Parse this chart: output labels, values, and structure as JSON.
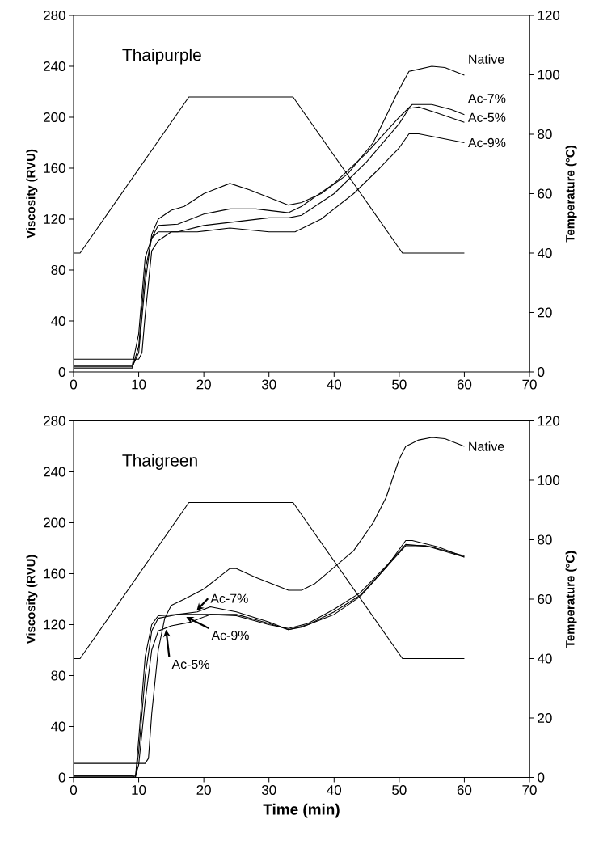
{
  "chart_data": [
    {
      "type": "line",
      "title": "Thaipurple",
      "ylabel": "Viscosity (RVU)",
      "y2label": "Temperature (°C)",
      "xlim": [
        0,
        70
      ],
      "xticks": [
        0,
        10,
        20,
        30,
        40,
        50,
        60,
        70
      ],
      "ylim": [
        0,
        280
      ],
      "yticks": [
        0,
        40,
        80,
        120,
        160,
        200,
        240,
        280
      ],
      "y2lim": [
        0,
        120
      ],
      "y2ticks": [
        0,
        20,
        40,
        60,
        80,
        100,
        120
      ],
      "series": [
        {
          "name": "Native",
          "color": "#000000",
          "x": [
            0,
            9,
            10,
            11,
            12,
            13,
            15,
            17,
            20,
            24,
            27,
            33,
            35,
            38,
            42,
            46,
            50,
            51.5,
            55,
            57,
            60
          ],
          "values": [
            4,
            4,
            15,
            70,
            108,
            120,
            127,
            130,
            140,
            148,
            143,
            131,
            133,
            140,
            155,
            180,
            222,
            236,
            240,
            239,
            233
          ]
        },
        {
          "name": "Ac-7%",
          "color": "#000000",
          "x": [
            0,
            9,
            10,
            11,
            12,
            13,
            16,
            20,
            24,
            28,
            33,
            35,
            40,
            45,
            50,
            52,
            55,
            58,
            60
          ],
          "values": [
            3,
            3,
            20,
            80,
            105,
            115,
            116,
            124,
            128,
            128,
            125,
            130,
            148,
            172,
            200,
            210,
            210,
            206,
            202
          ]
        },
        {
          "name": "Ac-5%",
          "color": "#000000",
          "x": [
            0,
            9,
            10,
            11,
            12,
            13,
            16,
            20,
            25,
            30,
            33,
            35,
            40,
            45,
            50,
            51.5,
            53,
            56,
            60
          ],
          "values": [
            5,
            5,
            30,
            90,
            105,
            110,
            110,
            115,
            118,
            121,
            121,
            123,
            140,
            165,
            195,
            207,
            208,
            203,
            196
          ]
        },
        {
          "name": "Ac-9%",
          "color": "#000000",
          "x": [
            0,
            10,
            10.5,
            11,
            12,
            13,
            15,
            19,
            24,
            30,
            34,
            38,
            43,
            47,
            50,
            51.5,
            53,
            60
          ],
          "values": [
            10,
            10,
            15,
            45,
            95,
            103,
            110,
            110,
            113,
            110,
            110,
            120,
            140,
            160,
            176,
            187,
            187,
            180
          ]
        },
        {
          "color": "#000000",
          "axis": "y2",
          "x": [
            0,
            1,
            17.7,
            33.7,
            50.5,
            60
          ],
          "values": [
            40,
            40,
            92.5,
            92.5,
            40,
            40
          ]
        }
      ]
    },
    {
      "type": "line",
      "title": "Thaigreen",
      "xlabel": "Time (min)",
      "ylabel": "Viscosity (RVU)",
      "y2label": "Temperature (°C)",
      "xlim": [
        0,
        70
      ],
      "xticks": [
        0,
        10,
        20,
        30,
        40,
        50,
        60,
        70
      ],
      "ylim": [
        0,
        280
      ],
      "yticks": [
        0,
        40,
        80,
        120,
        160,
        200,
        240,
        280
      ],
      "y2lim": [
        0,
        120
      ],
      "y2ticks": [
        0,
        20,
        40,
        60,
        80,
        100,
        120
      ],
      "annotations": [
        {
          "text": "Ac-7%",
          "x": 18.9,
          "y": 131
        },
        {
          "text": "Ac-9%",
          "x": 17.3,
          "y": 126
        },
        {
          "text": "Ac-5%",
          "x": 14.2,
          "y": 116
        }
      ],
      "series": [
        {
          "name": "Native",
          "color": "#000000",
          "x": [
            0,
            10,
            11,
            11.5,
            12,
            13,
            14,
            15,
            17,
            20,
            24,
            25,
            28,
            33,
            35,
            37,
            40,
            43,
            46,
            48,
            50,
            51,
            53,
            55,
            57,
            60
          ],
          "values": [
            11,
            11,
            11,
            15,
            50,
            100,
            125,
            135,
            140,
            148,
            164,
            164,
            157,
            147,
            147,
            152,
            165,
            178,
            200,
            220,
            250,
            260,
            265,
            267,
            266,
            260
          ]
        },
        {
          "color": "#000000",
          "x": [
            0,
            9,
            9.5,
            10,
            11,
            12,
            13,
            16,
            19,
            21,
            25,
            30,
            33,
            35,
            40,
            44,
            48,
            51,
            52,
            56,
            60
          ],
          "values": [
            1,
            1,
            0,
            20,
            80,
            115,
            125,
            128,
            130,
            134,
            130,
            122,
            116,
            118,
            128,
            142,
            165,
            186,
            186,
            181,
            173
          ]
        },
        {
          "color": "#000000",
          "x": [
            0,
            9.5,
            10,
            11,
            12,
            13,
            16,
            25,
            30,
            33,
            36,
            40,
            44,
            48,
            51,
            54,
            60
          ],
          "values": [
            0,
            0,
            30,
            95,
            120,
            127,
            128,
            128,
            121,
            116,
            120,
            130,
            143,
            165,
            182,
            182,
            173
          ]
        },
        {
          "color": "#000000",
          "x": [
            0,
            9.5,
            10,
            11,
            12,
            13,
            15,
            18,
            21,
            25,
            30,
            33,
            36,
            40,
            44,
            48,
            51,
            55,
            60
          ],
          "values": [
            1,
            1,
            10,
            60,
            100,
            115,
            119,
            122,
            128,
            127,
            120,
            117,
            121,
            132,
            145,
            166,
            183,
            181,
            174
          ]
        },
        {
          "color": "#000000",
          "axis": "y2",
          "x": [
            0,
            1,
            17.7,
            33.7,
            50.5,
            60
          ],
          "values": [
            40,
            40,
            92.5,
            92.5,
            40,
            40
          ]
        }
      ]
    }
  ]
}
